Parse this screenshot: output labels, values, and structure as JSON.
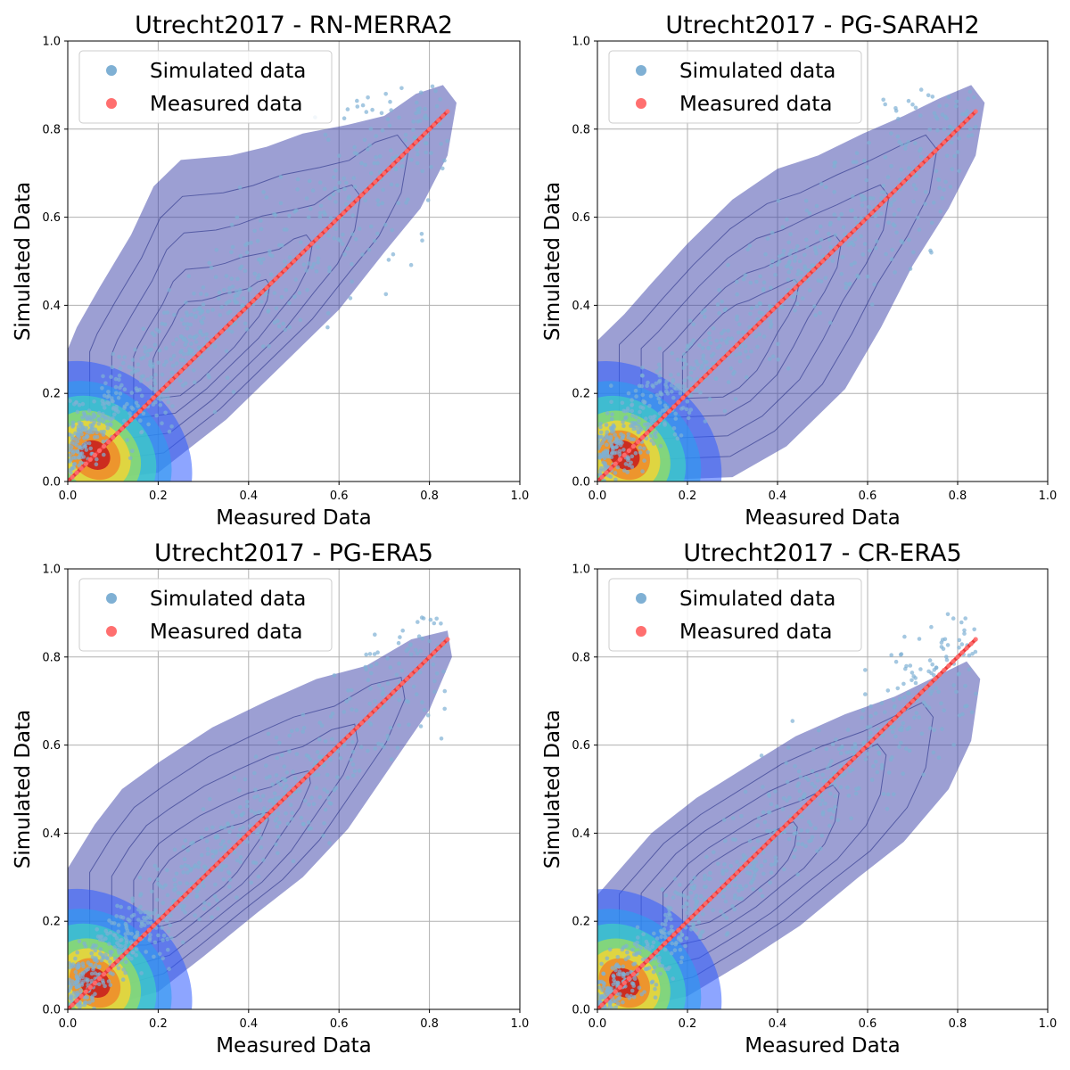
{
  "chart_data": [
    {
      "type": "scatter",
      "title": "Utrecht2017 - RN-MERRA2",
      "xlabel": "Measured Data",
      "ylabel": "Simulated Data",
      "xlim": [
        0,
        1.0
      ],
      "ylim": [
        0,
        1.0
      ],
      "xticks": [
        "0.0",
        "0.2",
        "0.4",
        "0.6",
        "0.8",
        "1.0"
      ],
      "yticks": [
        "0.0",
        "0.2",
        "0.4",
        "0.6",
        "0.8",
        "1.0"
      ],
      "grid": true,
      "legend": {
        "position": "top-left",
        "entries": [
          "Simulated data",
          "Measured data"
        ]
      },
      "series": [
        {
          "name": "Simulated data",
          "color": "#7fb0d4",
          "kind": "scatter with KDE density overlay",
          "x_range": [
            0.0,
            0.84
          ],
          "y_range": [
            0.0,
            0.9
          ]
        },
        {
          "name": "Measured data",
          "color": "#ff6f6f",
          "kind": "line y = x",
          "x": [
            0.0,
            0.84
          ],
          "y": [
            0.0,
            0.84
          ]
        }
      ]
    },
    {
      "type": "scatter",
      "title": "Utrecht2017 - PG-SARAH2",
      "xlabel": "Measured Data",
      "ylabel": "Simulated Data",
      "xlim": [
        0,
        1.0
      ],
      "ylim": [
        0,
        1.0
      ],
      "xticks": [
        "0.0",
        "0.2",
        "0.4",
        "0.6",
        "0.8",
        "1.0"
      ],
      "yticks": [
        "0.0",
        "0.2",
        "0.4",
        "0.6",
        "0.8",
        "1.0"
      ],
      "grid": true,
      "legend": {
        "position": "top-left",
        "entries": [
          "Simulated data",
          "Measured data"
        ]
      },
      "series": [
        {
          "name": "Simulated data",
          "color": "#7fb0d4",
          "kind": "scatter with KDE density overlay",
          "x_range": [
            0.0,
            0.84
          ],
          "y_range": [
            0.0,
            0.9
          ]
        },
        {
          "name": "Measured data",
          "color": "#ff6f6f",
          "kind": "line y = x",
          "x": [
            0.0,
            0.84
          ],
          "y": [
            0.0,
            0.84
          ]
        }
      ]
    },
    {
      "type": "scatter",
      "title": "Utrecht2017 - PG-ERA5",
      "xlabel": "Measured Data",
      "ylabel": "Simulated Data",
      "xlim": [
        0,
        1.0
      ],
      "ylim": [
        0,
        1.0
      ],
      "xticks": [
        "0.0",
        "0.2",
        "0.4",
        "0.6",
        "0.8",
        "1.0"
      ],
      "yticks": [
        "0.0",
        "0.2",
        "0.4",
        "0.6",
        "0.8",
        "1.0"
      ],
      "grid": true,
      "legend": {
        "position": "top-left",
        "entries": [
          "Simulated data",
          "Measured data"
        ]
      },
      "series": [
        {
          "name": "Simulated data",
          "color": "#7fb0d4",
          "kind": "scatter with KDE density overlay",
          "x_range": [
            0.0,
            0.84
          ],
          "y_range": [
            0.0,
            0.86
          ]
        },
        {
          "name": "Measured data",
          "color": "#ff6f6f",
          "kind": "line y = x",
          "x": [
            0.0,
            0.84
          ],
          "y": [
            0.0,
            0.84
          ]
        }
      ]
    },
    {
      "type": "scatter",
      "title": "Utrecht2017 - CR-ERA5",
      "xlabel": "Measured Data",
      "ylabel": "Simulated Data",
      "xlim": [
        0,
        1.0
      ],
      "ylim": [
        0,
        1.0
      ],
      "xticks": [
        "0.0",
        "0.2",
        "0.4",
        "0.6",
        "0.8",
        "1.0"
      ],
      "yticks": [
        "0.0",
        "0.2",
        "0.4",
        "0.6",
        "0.8",
        "1.0"
      ],
      "grid": true,
      "legend": {
        "position": "top-left",
        "entries": [
          "Simulated data",
          "Measured data"
        ]
      },
      "series": [
        {
          "name": "Simulated data",
          "color": "#7fb0d4",
          "kind": "scatter with KDE density overlay",
          "x_range": [
            0.0,
            0.84
          ],
          "y_range": [
            0.0,
            0.8
          ]
        },
        {
          "name": "Measured data",
          "color": "#ff6f6f",
          "kind": "line y = x",
          "x": [
            0.0,
            0.84
          ],
          "y": [
            0.0,
            0.84
          ]
        }
      ]
    }
  ]
}
